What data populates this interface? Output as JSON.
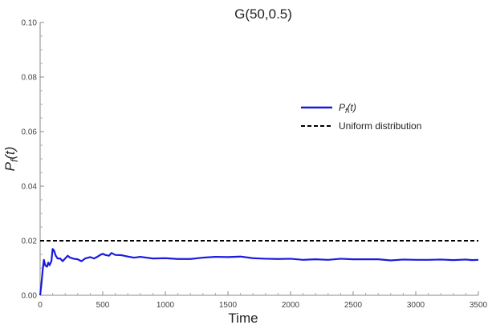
{
  "chart_data": {
    "type": "line",
    "title": "G(50,0.5)",
    "xlabel": "Time",
    "ylabel": "P_f(t)",
    "xlim": [
      0,
      3500
    ],
    "ylim": [
      0,
      0.1
    ],
    "x_ticks": [
      0,
      500,
      1000,
      1500,
      2000,
      2500,
      3000,
      3500
    ],
    "y_ticks": [
      0.0,
      0.02,
      0.04,
      0.06,
      0.08,
      0.1
    ],
    "x_tick_labels": [
      "0",
      "500",
      "1000",
      "1500",
      "2000",
      "2500",
      "3000",
      "3500"
    ],
    "y_tick_labels": [
      "0.00",
      "0.02",
      "0.04",
      "0.06",
      "0.08",
      "0.10"
    ],
    "legend_position": "right",
    "grid": false,
    "series": [
      {
        "name": "P_f(t)",
        "color": "#1a1adf",
        "style": "solid",
        "x": [
          0,
          10,
          20,
          30,
          40,
          55,
          65,
          75,
          90,
          100,
          110,
          125,
          140,
          160,
          180,
          200,
          220,
          240,
          260,
          280,
          300,
          330,
          360,
          400,
          430,
          460,
          480,
          500,
          520,
          550,
          570,
          600,
          650,
          700,
          750,
          800,
          900,
          1000,
          1100,
          1200,
          1300,
          1400,
          1500,
          1600,
          1700,
          1800,
          1900,
          2000,
          2100,
          2200,
          2300,
          2400,
          2500,
          2600,
          2700,
          2800,
          2900,
          3000,
          3100,
          3200,
          3300,
          3400,
          3450,
          3500
        ],
        "values": [
          0.0,
          0.004,
          0.009,
          0.013,
          0.011,
          0.0105,
          0.012,
          0.011,
          0.0125,
          0.017,
          0.0165,
          0.0145,
          0.0135,
          0.0135,
          0.0125,
          0.0135,
          0.0145,
          0.0138,
          0.0135,
          0.0133,
          0.0132,
          0.0125,
          0.0135,
          0.014,
          0.0135,
          0.0142,
          0.0148,
          0.0152,
          0.0148,
          0.0145,
          0.0155,
          0.0148,
          0.0147,
          0.0142,
          0.0138,
          0.0141,
          0.0135,
          0.0136,
          0.0133,
          0.0133,
          0.0138,
          0.0141,
          0.014,
          0.0142,
          0.0136,
          0.0134,
          0.0133,
          0.0134,
          0.013,
          0.0132,
          0.013,
          0.0134,
          0.0132,
          0.0132,
          0.0132,
          0.0128,
          0.0131,
          0.013,
          0.013,
          0.0131,
          0.0129,
          0.0131,
          0.0129,
          0.013
        ]
      },
      {
        "name": "Uniform distribution",
        "color": "#000000",
        "style": "dashed",
        "x": [
          0,
          3500
        ],
        "values": [
          0.02,
          0.02
        ]
      }
    ]
  }
}
